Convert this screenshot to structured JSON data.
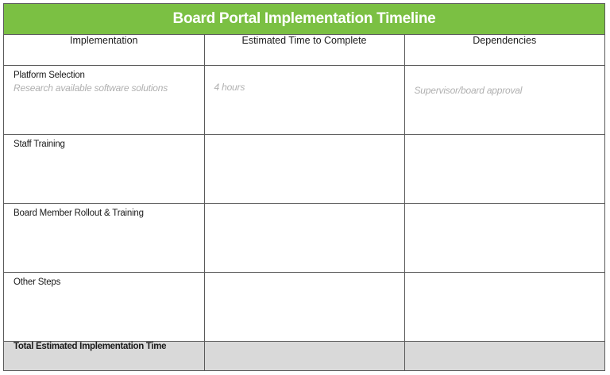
{
  "title": "Board Portal Implementation Timeline",
  "columns": [
    "Implementation",
    "Estimated Time to Complete",
    "Dependencies"
  ],
  "rows": [
    {
      "step": "Platform Selection",
      "note": "Research available software solutions",
      "time": "4 hours",
      "dependency": "Supervisor/board approval"
    },
    {
      "step": "Staff Training",
      "note": "",
      "time": "",
      "dependency": ""
    },
    {
      "step": "Board Member Rollout & Training",
      "note": "",
      "time": "",
      "dependency": ""
    },
    {
      "step": "Other Steps",
      "note": "",
      "time": "",
      "dependency": ""
    }
  ],
  "total_label": "Total Estimated Implementation Time",
  "colors": {
    "header_green": "#7bc043",
    "total_row_gray": "#d9d9d9",
    "placeholder_gray": "#b0b0b0",
    "border": "#5a5a5a"
  }
}
